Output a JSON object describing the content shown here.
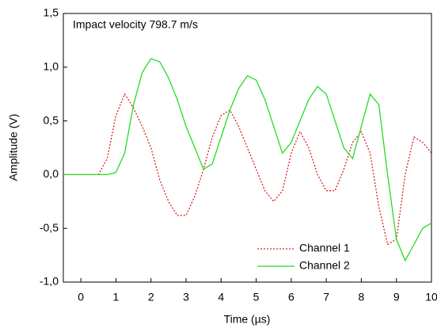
{
  "chart_data": {
    "type": "line",
    "annotation": "Impact velocity 798.7 m/s",
    "x_label": "Time (µs)",
    "y_label": "Amplitude (V)",
    "x": [
      -0.5,
      -0.25,
      0,
      0.25,
      0.5,
      0.75,
      1,
      1.25,
      1.5,
      1.75,
      2,
      2.25,
      2.5,
      2.75,
      3,
      3.25,
      3.5,
      3.75,
      4,
      4.25,
      4.5,
      4.75,
      5,
      5.25,
      5.5,
      5.75,
      6,
      6.25,
      6.5,
      6.75,
      7,
      7.25,
      7.5,
      7.75,
      8,
      8.25,
      8.5,
      8.75,
      9,
      9.25,
      9.5,
      9.75,
      10
    ],
    "series": [
      {
        "name": "Channel 1",
        "color": "#d62020",
        "dashed": true,
        "values": [
          0,
          0,
          0,
          0,
          0,
          0.15,
          0.55,
          0.75,
          0.62,
          0.45,
          0.25,
          -0.05,
          -0.25,
          -0.38,
          -0.38,
          -0.2,
          0.05,
          0.35,
          0.55,
          0.6,
          0.45,
          0.25,
          0.05,
          -0.15,
          -0.25,
          -0.15,
          0.2,
          0.4,
          0.25,
          0.0,
          -0.15,
          -0.15,
          0.05,
          0.3,
          0.4,
          0.2,
          -0.3,
          -0.65,
          -0.6,
          0.0,
          0.35,
          0.3,
          0.2
        ]
      },
      {
        "name": "Channel 2",
        "color": "#22dd22",
        "dashed": false,
        "values": [
          0,
          0,
          0,
          0,
          0,
          0,
          0.02,
          0.2,
          0.65,
          0.95,
          1.08,
          1.05,
          0.9,
          0.7,
          0.45,
          0.25,
          0.05,
          0.1,
          0.35,
          0.6,
          0.8,
          0.92,
          0.88,
          0.7,
          0.45,
          0.2,
          0.3,
          0.5,
          0.7,
          0.82,
          0.75,
          0.5,
          0.25,
          0.15,
          0.45,
          0.75,
          0.65,
          0.0,
          -0.6,
          -0.8,
          -0.65,
          -0.5,
          -0.45
        ]
      }
    ],
    "xlim": [
      -0.5,
      10
    ],
    "xticks": [
      0,
      1,
      2,
      3,
      4,
      5,
      6,
      7,
      8,
      9,
      10
    ],
    "ylim": [
      -1.0,
      1.5
    ],
    "yticks": [
      {
        "value": -1.0,
        "label": "-1,0"
      },
      {
        "value": -0.5,
        "label": "-0,5"
      },
      {
        "value": 0,
        "label": "0,0"
      },
      {
        "value": 0.5,
        "label": "0,5"
      },
      {
        "value": 1.0,
        "label": "1,0"
      },
      {
        "value": 1.5,
        "label": "1,5"
      }
    ],
    "grid": false
  }
}
